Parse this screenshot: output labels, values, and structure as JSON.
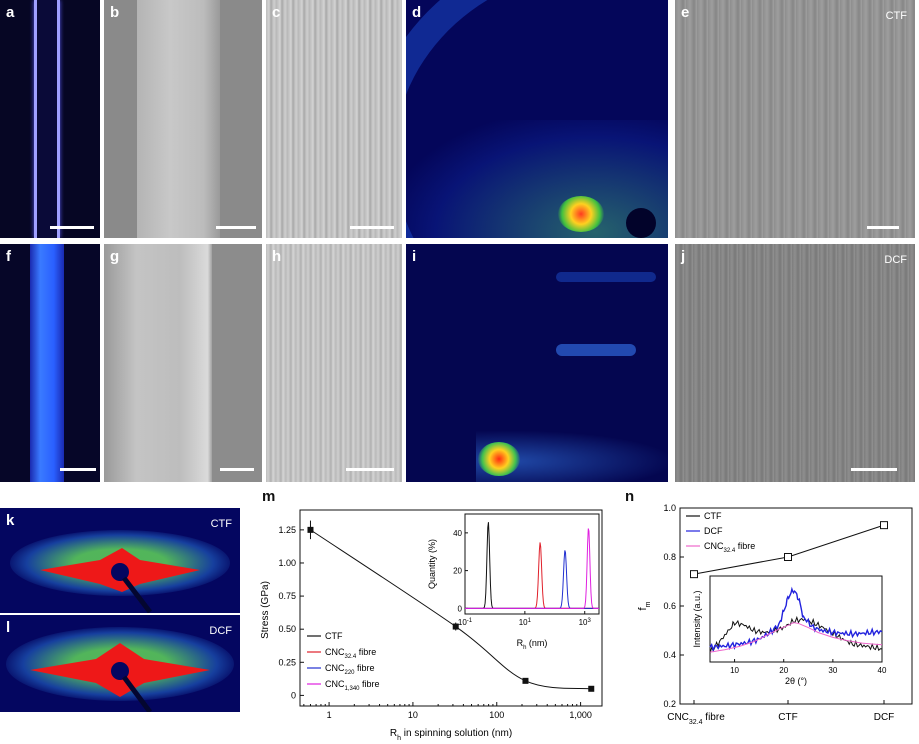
{
  "panels": {
    "a": "a",
    "b": "b",
    "c": "c",
    "d": "d",
    "e": "e",
    "f": "f",
    "g": "g",
    "h": "h",
    "i": "i",
    "j": "j",
    "k": "k",
    "l": "l",
    "m": "m",
    "n": "n"
  },
  "tags": {
    "e": "CTF",
    "j": "DCF",
    "k": "CTF",
    "l": "DCF"
  },
  "colors": {
    "ctf": "#111111",
    "cnc32": "#e0202a",
    "cnc220": "#2230d0",
    "cnc1340": "#e020e0",
    "dcf_n": "#2222dd",
    "cnc32_n": "#ee66cc"
  },
  "chart_m": {
    "ylabel": "Stress (GPa)",
    "xlabel_pre": "R",
    "xlabel_sub": "h",
    "xlabel_post": " in spinning solution (nm)",
    "yticks": [
      "0",
      "0.25",
      "0.50",
      "0.75",
      "1.00",
      "1.25"
    ],
    "xticks": [
      "1",
      "10",
      "100",
      "1,000"
    ],
    "legend": [
      {
        "pre": "CTF",
        "sub": "",
        "post": ""
      },
      {
        "pre": "CNC",
        "sub": "32.4",
        "post": " fibre"
      },
      {
        "pre": "CNC",
        "sub": "220",
        "post": " fibre"
      },
      {
        "pre": "CNC",
        "sub": "1,340",
        "post": " fibre"
      }
    ],
    "inset": {
      "ylabel": "Quantity (%)",
      "xlabel_pre": "R",
      "xlabel_sub": "h",
      "xlabel_post": " (nm)",
      "yticks": [
        "0",
        "20",
        "40"
      ],
      "xticks": [
        {
          "base": "10",
          "exp": "-1"
        },
        {
          "base": "10",
          "exp": "1"
        },
        {
          "base": "10",
          "exp": "3"
        }
      ]
    }
  },
  "chart_n": {
    "ylabel_pre": "f",
    "ylabel_sub": "m",
    "yticks": [
      "0.2",
      "0.4",
      "0.6",
      "0.8",
      "1.0"
    ],
    "xticks": [
      {
        "pre": "CNC",
        "sub": "32.4",
        "post": " fibre"
      },
      {
        "pre": "CTF",
        "sub": "",
        "post": ""
      },
      {
        "pre": "DCF",
        "sub": "",
        "post": ""
      }
    ],
    "legend": [
      {
        "pre": "CTF",
        "sub": "",
        "post": ""
      },
      {
        "pre": "DCF",
        "sub": "",
        "post": ""
      },
      {
        "pre": "CNC",
        "sub": "32.4",
        "post": " fibre"
      }
    ],
    "inset": {
      "ylabel": "Intensity (a.u.)",
      "xlabel": "2θ (°)",
      "xticks": [
        "10",
        "20",
        "30",
        "40"
      ]
    }
  },
  "chart_data": [
    {
      "type": "line",
      "xscale": "log",
      "xlim": [
        0.45,
        1800
      ],
      "ylim": [
        -0.08,
        1.4
      ],
      "series": [
        {
          "name": "CTF",
          "x": [
            0.6
          ],
          "y": [
            1.25
          ],
          "err": [
            0.07
          ]
        },
        {
          "name": "CNC32.4 fibre",
          "x": [
            32.4
          ],
          "y": [
            0.52
          ],
          "err": [
            0.03
          ]
        },
        {
          "name": "CNC220 fibre",
          "x": [
            220
          ],
          "y": [
            0.11
          ],
          "err": [
            0.01
          ]
        },
        {
          "name": "CNC1,340 fibre",
          "x": [
            1340
          ],
          "y": [
            0.05
          ],
          "err": [
            0.005
          ]
        }
      ]
    },
    {
      "type": "line",
      "xscale": "log",
      "xlim": [
        0.1,
        3000
      ],
      "ylim": [
        -3,
        50
      ],
      "series": [
        {
          "name": "CTF",
          "peak": 0.6,
          "height": 46,
          "width": 0.045
        },
        {
          "name": "CNC32.4 fibre",
          "peak": 32.4,
          "height": 35,
          "width": 0.05
        },
        {
          "name": "CNC220 fibre",
          "peak": 220,
          "height": 31,
          "width": 0.05
        },
        {
          "name": "CNC1,340 fibre",
          "peak": 1340,
          "height": 43,
          "width": 0.045
        }
      ]
    },
    {
      "type": "line",
      "categories": [
        "CNC32.4 fibre",
        "CTF",
        "DCF"
      ],
      "ylim": [
        0.2,
        1.0
      ],
      "values": [
        0.73,
        0.8,
        0.93
      ],
      "err": [
        0.01,
        0.01,
        0.01
      ]
    },
    {
      "type": "line",
      "xlim": [
        5,
        40
      ],
      "series": [
        {
          "name": "CTF",
          "x": [
            5,
            7,
            9,
            10,
            12,
            14,
            16,
            18,
            20,
            22,
            24,
            26,
            28,
            30,
            32,
            34,
            36,
            38,
            40
          ],
          "y": [
            0.12,
            0.25,
            0.4,
            0.48,
            0.45,
            0.38,
            0.36,
            0.38,
            0.42,
            0.5,
            0.52,
            0.48,
            0.42,
            0.35,
            0.28,
            0.22,
            0.2,
            0.18,
            0.16
          ]
        },
        {
          "name": "DCF",
          "x": [
            5,
            7,
            9,
            11,
            13,
            15,
            17,
            19,
            20,
            21,
            22,
            23,
            24,
            26,
            28,
            30,
            32,
            34,
            36,
            38,
            40
          ],
          "y": [
            0.18,
            0.19,
            0.2,
            0.22,
            0.24,
            0.28,
            0.35,
            0.45,
            0.62,
            0.8,
            0.88,
            0.78,
            0.55,
            0.42,
            0.38,
            0.36,
            0.35,
            0.34,
            0.35,
            0.36,
            0.37
          ]
        },
        {
          "name": "CNC32.4 fibre",
          "x": [
            5,
            8,
            11,
            14,
            17,
            19,
            21,
            22,
            23,
            25,
            27,
            30,
            33,
            36,
            40
          ],
          "y": [
            0.12,
            0.15,
            0.19,
            0.25,
            0.34,
            0.4,
            0.45,
            0.48,
            0.47,
            0.42,
            0.36,
            0.3,
            0.26,
            0.23,
            0.21
          ]
        }
      ]
    }
  ]
}
